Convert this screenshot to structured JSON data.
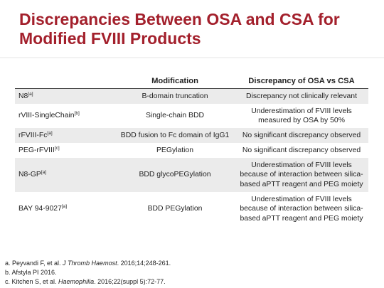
{
  "title": "Discrepancies Between OSA and CSA for\nModified FVIII Products",
  "table": {
    "headers": {
      "product": "",
      "modification": "Modification",
      "discrepancy": "Discrepancy of OSA vs CSA"
    },
    "rows": [
      {
        "product": "N8",
        "ref": "[a]",
        "modification": "B-domain truncation",
        "discrepancy": "Discrepancy not clinically relevant"
      },
      {
        "product": "rVIII-SingleChain",
        "ref": "[b]",
        "modification": "Single-chain BDD",
        "discrepancy": "Underestimation of FVIII levels measured by OSA by 50%"
      },
      {
        "product": "rFVIII-Fc",
        "ref": "[a]",
        "modification": "BDD fusion to Fc domain of IgG1",
        "discrepancy": "No significant discrepancy observed"
      },
      {
        "product": "PEG-rFVIII",
        "ref": "[c]",
        "modification": "PEGylation",
        "discrepancy": "No significant discrepancy observed"
      },
      {
        "product": "N8-GP",
        "ref": "[a]",
        "modification": "BDD glycoPEGylation",
        "discrepancy": "Underestimation of  FVIII levels because of interaction between silica-based aPTT reagent and PEG moiety"
      },
      {
        "product": "BAY 94-9027",
        "ref": "[a]",
        "modification": "BDD PEGylation",
        "discrepancy": "Underestimation of FVIII levels because of interaction between silica-based aPTT reagent and PEG moiety"
      }
    ]
  },
  "references": [
    {
      "prefix": "a. Peyvandi F, et al. ",
      "journal": "J Thromb Haemost",
      "suffix": ". 2016;14;248-261."
    },
    {
      "prefix": "b. Afstyla PI 2016.",
      "journal": "",
      "suffix": ""
    },
    {
      "prefix": "c. Kitchen S, et al. ",
      "journal": "Haemophilia",
      "suffix": ". 2016;22(suppl 5):72-77."
    }
  ]
}
